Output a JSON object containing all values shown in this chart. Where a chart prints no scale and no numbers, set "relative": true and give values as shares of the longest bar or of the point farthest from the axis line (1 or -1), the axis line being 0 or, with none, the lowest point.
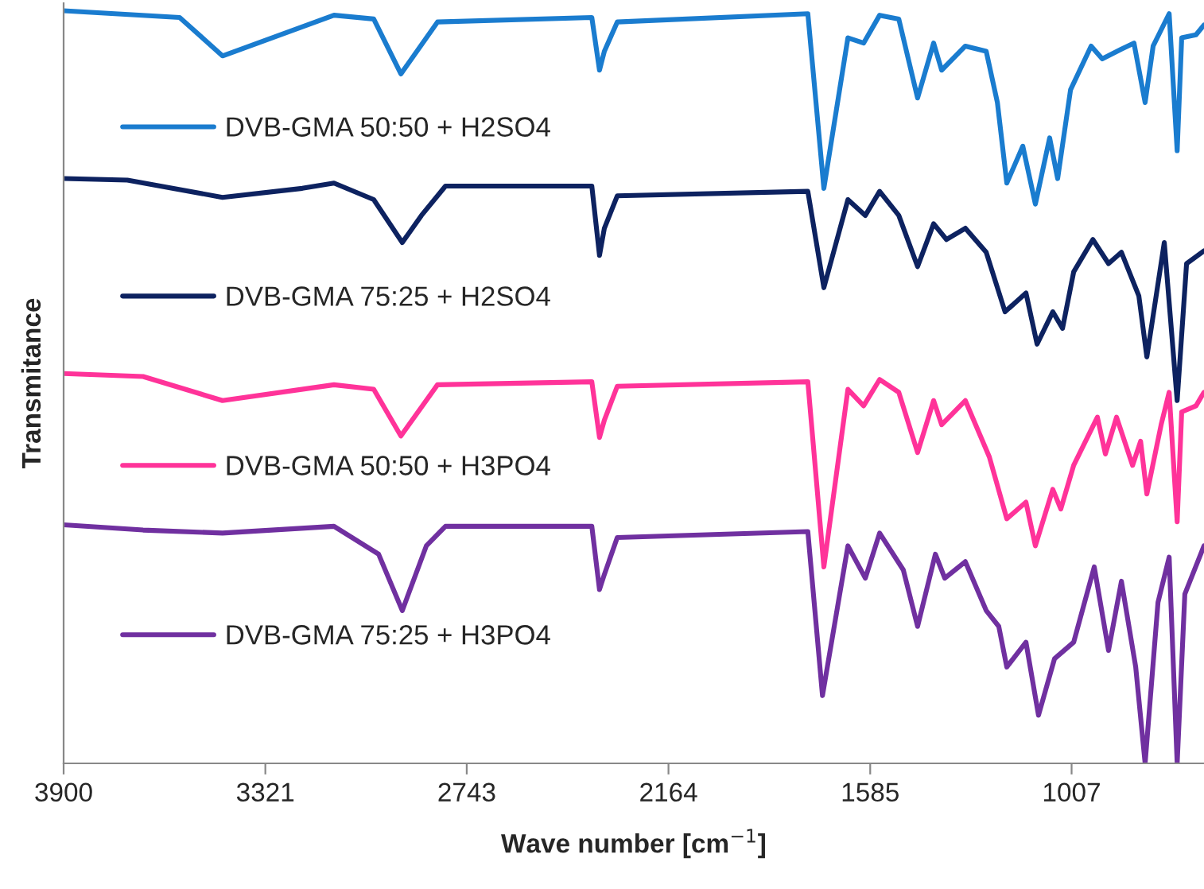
{
  "chart_data": {
    "type": "line",
    "relative": true,
    "xlabel": "Wave number [cm$^{−1}$]",
    "ylabel": "Transmitance",
    "xlim": [
      3900,
      627
    ],
    "xticks": [
      3900,
      3321,
      2743,
      2164,
      1585,
      1007
    ],
    "legend": "left",
    "grid": false,
    "series": [
      {
        "name": "DVB-GMA 50:50 + H2SO4",
        "color": "#1a7ccf",
        "x": [
          3900,
          3567,
          3444,
          3124,
          3010,
          2932,
          2827,
          2384,
          2362,
          2348,
          2311,
          1764,
          1718,
          1649,
          1604,
          1558,
          1503,
          1449,
          1403,
          1380,
          1312,
          1252,
          1220,
          1193,
          1147,
          1111,
          1070,
          1047,
          1010,
          951,
          919,
          864,
          828,
          796,
          773,
          727,
          704,
          691,
          650,
          627
        ],
        "values": [
          1.0,
          0.991,
          0.94,
          0.994,
          0.989,
          0.916,
          0.985,
          0.991,
          0.921,
          0.946,
          0.985,
          0.996,
          0.764,
          0.964,
          0.957,
          0.994,
          0.989,
          0.884,
          0.957,
          0.921,
          0.953,
          0.946,
          0.878,
          0.771,
          0.82,
          0.743,
          0.831,
          0.777,
          0.895,
          0.953,
          0.936,
          0.949,
          0.957,
          0.878,
          0.953,
          0.996,
          0.814,
          0.964,
          0.968,
          0.981
        ]
      },
      {
        "name": "DVB-GMA 75:25 + H2SO4",
        "color": "#0d2260",
        "x": [
          3900,
          3717,
          3444,
          3215,
          3124,
          3010,
          2928,
          2873,
          2804,
          2384,
          2362,
          2348,
          2311,
          1764,
          1718,
          1649,
          1599,
          1558,
          1503,
          1449,
          1403,
          1366,
          1312,
          1252,
          1198,
          1138,
          1106,
          1061,
          1033,
          1001,
          946,
          901,
          864,
          814,
          791,
          741,
          704,
          677,
          627
        ],
        "values": [
          0.777,
          0.775,
          0.752,
          0.764,
          0.771,
          0.749,
          0.692,
          0.728,
          0.767,
          0.767,
          0.675,
          0.711,
          0.754,
          0.76,
          0.632,
          0.749,
          0.728,
          0.76,
          0.728,
          0.66,
          0.717,
          0.696,
          0.711,
          0.679,
          0.6,
          0.625,
          0.557,
          0.6,
          0.578,
          0.653,
          0.696,
          0.664,
          0.679,
          0.621,
          0.54,
          0.692,
          0.482,
          0.664,
          0.681
        ]
      },
      {
        "name": "DVB-GMA 50:50 + H3PO4",
        "color": "#ff3399",
        "x": [
          3900,
          3672,
          3444,
          3124,
          3010,
          2932,
          2827,
          2384,
          2362,
          2348,
          2311,
          1764,
          1718,
          1649,
          1604,
          1558,
          1503,
          1449,
          1403,
          1380,
          1312,
          1243,
          1193,
          1138,
          1111,
          1061,
          1038,
          1001,
          933,
          910,
          878,
          832,
          809,
          791,
          750,
          727,
          704,
          691,
          650,
          627
        ],
        "values": [
          0.518,
          0.514,
          0.482,
          0.503,
          0.497,
          0.435,
          0.503,
          0.507,
          0.433,
          0.456,
          0.501,
          0.507,
          0.261,
          0.497,
          0.475,
          0.51,
          0.493,
          0.413,
          0.482,
          0.45,
          0.482,
          0.407,
          0.325,
          0.347,
          0.289,
          0.364,
          0.338,
          0.396,
          0.46,
          0.411,
          0.46,
          0.396,
          0.428,
          0.358,
          0.45,
          0.493,
          0.321,
          0.467,
          0.475,
          0.493
        ]
      },
      {
        "name": "DVB-GMA 75:25 + H3PO4",
        "color": "#7030a0",
        "x": [
          3900,
          3672,
          3444,
          3124,
          2996,
          2928,
          2859,
          2804,
          2384,
          2362,
          2348,
          2311,
          1764,
          1722,
          1649,
          1599,
          1558,
          1490,
          1449,
          1398,
          1371,
          1312,
          1252,
          1216,
          1193,
          1138,
          1102,
          1056,
          1001,
          942,
          901,
          864,
          823,
          796,
          759,
          727,
          704,
          682,
          627
        ],
        "values": [
          0.317,
          0.31,
          0.306,
          0.315,
          0.278,
          0.203,
          0.289,
          0.315,
          0.315,
          0.231,
          0.251,
          0.3,
          0.308,
          0.09,
          0.289,
          0.246,
          0.306,
          0.257,
          0.182,
          0.278,
          0.246,
          0.268,
          0.203,
          0.182,
          0.128,
          0.161,
          0.064,
          0.139,
          0.161,
          0.261,
          0.15,
          0.242,
          0.128,
          0.0,
          0.214,
          0.274,
          0.0,
          0.225,
          0.289
        ]
      }
    ]
  }
}
